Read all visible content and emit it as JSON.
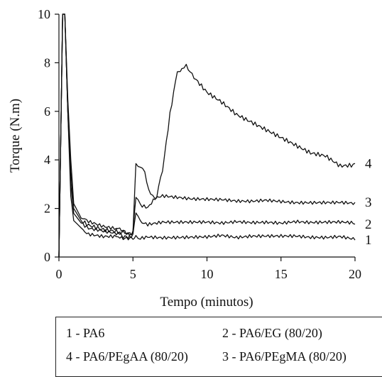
{
  "chart_data": {
    "type": "line",
    "xlabel": "Tempo (minutos)",
    "ylabel": "Torque (N.m)",
    "xlim": [
      0,
      20
    ],
    "ylim": [
      0,
      10
    ],
    "xticks": [
      0,
      5,
      10,
      15,
      20
    ],
    "yticks": [
      0,
      2,
      4,
      6,
      8,
      10
    ],
    "grid": false,
    "legend_placement": "bottom",
    "series": [
      {
        "label": "1",
        "x": [
          0,
          0.1,
          0.25,
          0.4,
          0.6,
          0.8,
          1.0,
          1.5,
          2,
          3,
          4,
          4.8,
          5.0,
          5.2,
          5.5,
          6,
          7,
          8,
          9,
          10,
          11,
          12,
          13,
          14,
          15,
          16,
          17,
          18,
          19,
          20
        ],
        "y": [
          0,
          4,
          10,
          10,
          6,
          2.5,
          1.5,
          1.2,
          1.0,
          0.9,
          0.9,
          0.7,
          0.7,
          0.85,
          0.8,
          0.85,
          0.8,
          0.8,
          0.8,
          0.8,
          0.85,
          0.75,
          0.8,
          0.8,
          0.8,
          0.8,
          0.75,
          0.75,
          0.8,
          0.7
        ]
      },
      {
        "label": "2",
        "x": [
          0,
          0.1,
          0.25,
          0.4,
          0.6,
          0.8,
          1.0,
          1.5,
          2,
          3,
          4,
          4.9,
          5.0,
          5.2,
          5.5,
          6,
          7,
          8,
          9,
          10,
          11,
          12,
          13,
          14,
          15,
          16,
          17,
          18,
          19,
          20
        ],
        "y": [
          0,
          4,
          10,
          10,
          6,
          3,
          1.8,
          1.4,
          1.2,
          1.1,
          1.0,
          0.9,
          1.0,
          1.7,
          1.5,
          1.4,
          1.5,
          1.5,
          1.5,
          1.5,
          1.45,
          1.5,
          1.45,
          1.45,
          1.4,
          1.45,
          1.4,
          1.4,
          1.4,
          1.35
        ]
      },
      {
        "label": "3",
        "x": [
          0,
          0.1,
          0.25,
          0.4,
          0.6,
          0.8,
          1.0,
          1.5,
          2,
          3,
          4,
          4.9,
          5.0,
          5.2,
          5.5,
          6,
          6.5,
          7,
          8,
          9,
          10,
          11,
          12,
          13,
          14,
          15,
          16,
          17,
          18,
          19,
          20
        ],
        "y": [
          0,
          4,
          10,
          10,
          6.5,
          4,
          2.2,
          1.6,
          1.4,
          1.2,
          1.1,
          1.0,
          1.1,
          2.5,
          2.1,
          2.0,
          2.4,
          2.5,
          2.45,
          2.4,
          2.4,
          2.4,
          2.35,
          2.35,
          2.4,
          2.35,
          2.3,
          2.3,
          2.3,
          2.3,
          2.25
        ]
      },
      {
        "label": "4",
        "x": [
          0,
          0.1,
          0.25,
          0.4,
          0.6,
          0.8,
          1.0,
          1.5,
          2,
          3,
          4,
          4.9,
          5.0,
          5.2,
          5.5,
          5.8,
          6.2,
          6.6,
          7,
          7.5,
          8,
          8.3,
          8.6,
          9,
          10,
          11,
          12,
          13,
          14,
          15,
          16,
          17,
          18,
          19,
          20
        ],
        "y": [
          0,
          4,
          10,
          10,
          6,
          3.5,
          2.0,
          1.5,
          1.3,
          1.1,
          1.0,
          0.8,
          1.0,
          4.0,
          3.7,
          3.5,
          2.6,
          2.5,
          3.5,
          5.8,
          7.6,
          7.9,
          7.9,
          7.4,
          6.7,
          6.3,
          5.8,
          5.5,
          5.2,
          4.9,
          4.6,
          4.3,
          4.2,
          3.8,
          3.85
        ]
      }
    ],
    "legend": [
      "1 - PA6",
      "2 - PA6/EG (80/20)",
      "4 - PA6/PEgAA (80/20)",
      "3 - PA6/PEgMA (80/20)"
    ]
  }
}
